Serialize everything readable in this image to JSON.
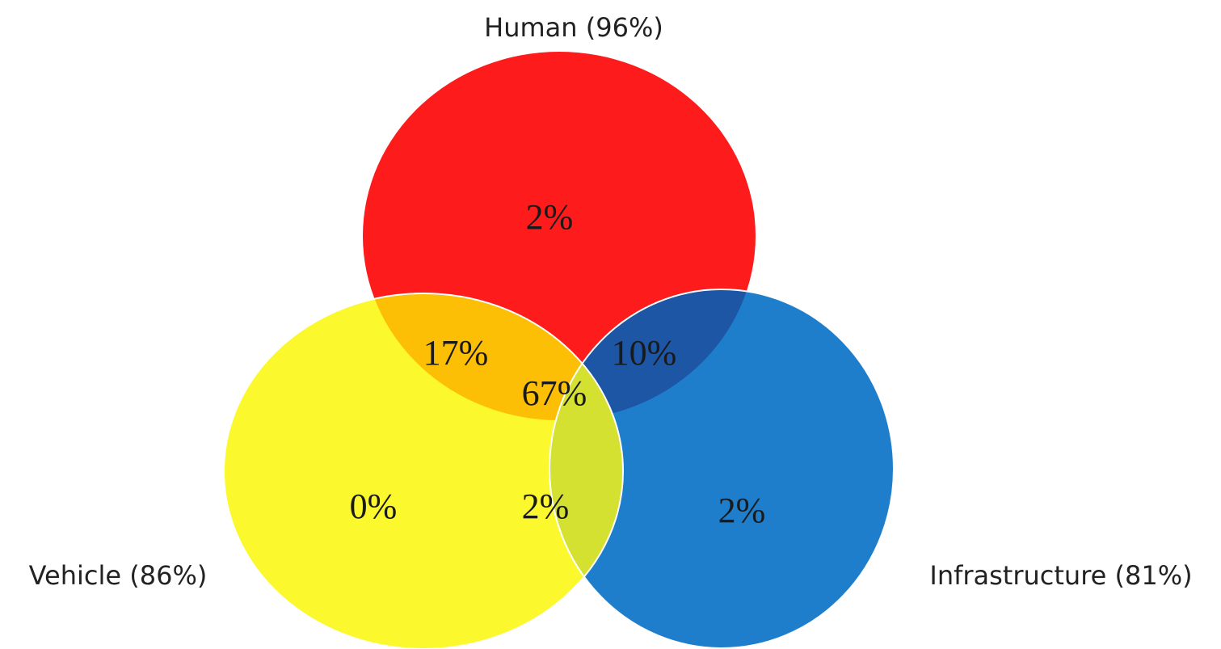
{
  "sets": {
    "human": {
      "label": "Human (96%)",
      "color": "#fe1b1b"
    },
    "vehicle": {
      "label": "Vehicle (86%)",
      "color": "#fcf82e"
    },
    "infrastructure": {
      "label": "Infrastructure (81%)",
      "color": "#1f7ecb"
    }
  },
  "regions": {
    "human_only": "2%",
    "human_vehicle": "17%",
    "human_infrastructure": "10%",
    "all_three": "67%",
    "vehicle_only": "0%",
    "vehicle_infrastructure": "2%",
    "infrastructure_only": "2%"
  },
  "overlap_colors": {
    "human_vehicle": "#fdbf05",
    "human_infrastructure": "#1c56a5",
    "vehicle_infrastructure": "#d5e130",
    "all_three": "#d5e130"
  }
}
